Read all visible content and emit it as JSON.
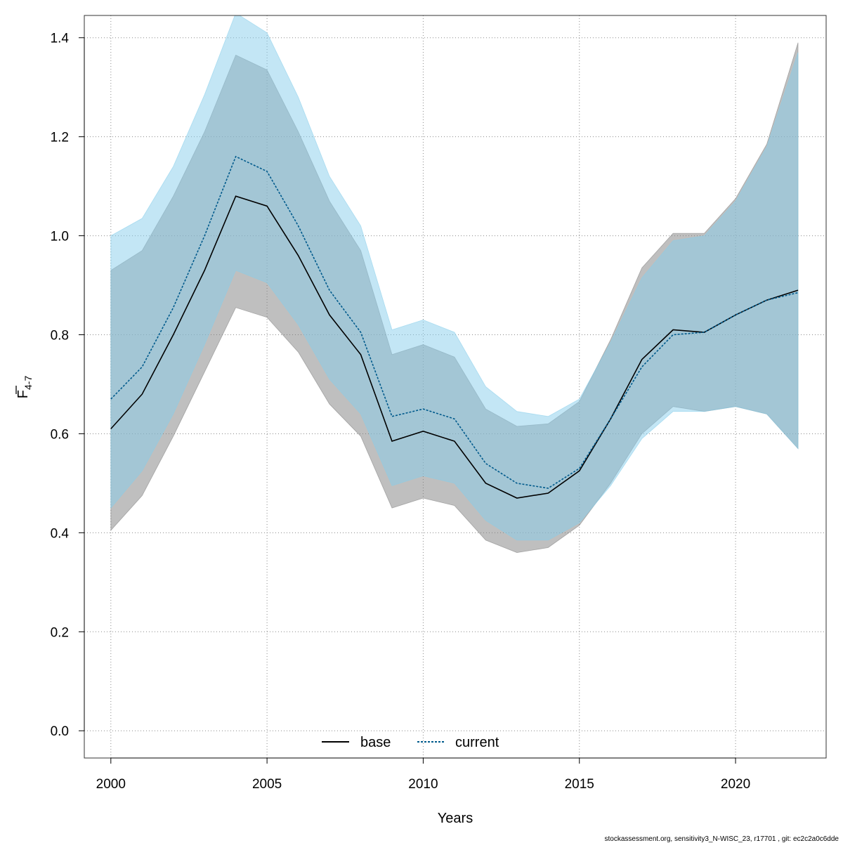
{
  "chart_data": {
    "type": "line",
    "xlabel": "Years",
    "ylabel_main": "F",
    "ylabel_sub": "4-7",
    "xlim": [
      1999.15,
      2022.9
    ],
    "ylim": [
      -0.055,
      1.445
    ],
    "xticks": [
      2000,
      2005,
      2010,
      2015,
      2020
    ],
    "yticks": [
      0.0,
      0.2,
      0.4,
      0.6,
      0.8,
      1.0,
      1.2,
      1.4
    ],
    "ytick_labels": [
      "0.0",
      "0.2",
      "0.4",
      "0.6",
      "0.8",
      "1.0",
      "1.2",
      "1.4"
    ],
    "grid": true,
    "legend_position": "bottom",
    "x": [
      2000,
      2001,
      2002,
      2003,
      2004,
      2005,
      2006,
      2007,
      2008,
      2009,
      2010,
      2011,
      2012,
      2013,
      2014,
      2015,
      2016,
      2017,
      2018,
      2019,
      2020,
      2021,
      2022
    ],
    "series": [
      {
        "name": "base",
        "color": "#000000",
        "band_color": "#808080",
        "line_style": "solid",
        "values": [
          0.61,
          0.68,
          0.8,
          0.93,
          1.08,
          1.06,
          0.96,
          0.84,
          0.76,
          0.585,
          0.605,
          0.585,
          0.5,
          0.47,
          0.48,
          0.525,
          0.63,
          0.75,
          0.81,
          0.805,
          0.84,
          0.87,
          0.89
        ],
        "lower": [
          0.405,
          0.475,
          0.595,
          0.725,
          0.855,
          0.835,
          0.765,
          0.66,
          0.595,
          0.45,
          0.47,
          0.455,
          0.385,
          0.36,
          0.37,
          0.415,
          0.5,
          0.6,
          0.655,
          0.645,
          0.655,
          0.64,
          0.57
        ],
        "upper": [
          0.93,
          0.97,
          1.08,
          1.21,
          1.365,
          1.335,
          1.21,
          1.07,
          0.97,
          0.76,
          0.78,
          0.755,
          0.65,
          0.615,
          0.62,
          0.665,
          0.79,
          0.935,
          1.005,
          1.005,
          1.075,
          1.185,
          1.39
        ]
      },
      {
        "name": "current",
        "color": "#005a8c",
        "band_color": "#87ceeb",
        "line_style": "dotted",
        "values": [
          0.67,
          0.735,
          0.855,
          1.0,
          1.16,
          1.13,
          1.02,
          0.89,
          0.805,
          0.635,
          0.65,
          0.63,
          0.54,
          0.5,
          0.49,
          0.53,
          0.63,
          0.735,
          0.8,
          0.805,
          0.84,
          0.87,
          0.885
        ],
        "lower": [
          0.45,
          0.525,
          0.64,
          0.78,
          0.93,
          0.905,
          0.82,
          0.71,
          0.64,
          0.495,
          0.515,
          0.5,
          0.425,
          0.385,
          0.385,
          0.42,
          0.495,
          0.59,
          0.645,
          0.645,
          0.655,
          0.64,
          0.57
        ],
        "upper": [
          1.0,
          1.035,
          1.14,
          1.285,
          1.45,
          1.41,
          1.28,
          1.12,
          1.02,
          0.81,
          0.83,
          0.805,
          0.695,
          0.645,
          0.635,
          0.67,
          0.785,
          0.915,
          0.99,
          1.0,
          1.07,
          1.18,
          1.37
        ]
      }
    ]
  },
  "footer": "stockassessment.org, sensitivity3_N-WISC_23, r17701 , git: ec2c2a0c6dde"
}
